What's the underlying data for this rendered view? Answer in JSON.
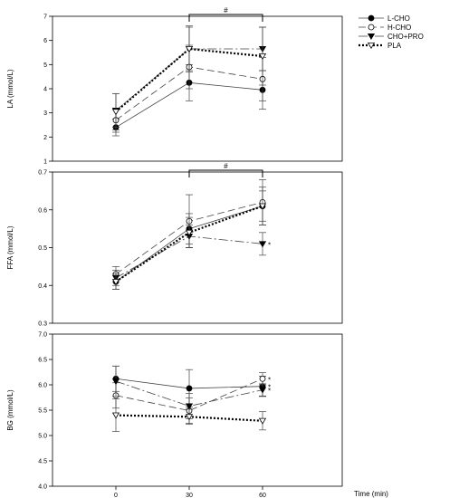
{
  "chart_data": [
    {
      "type": "line",
      "ylabel": "LA (mmol/L)",
      "ylim": [
        1,
        7
      ],
      "yticks": [
        1,
        2,
        3,
        4,
        5,
        6,
        7
      ],
      "ytick_labels": [
        "1",
        "2",
        "3",
        "4",
        "5",
        "6",
        "7"
      ],
      "x": [
        0,
        30,
        60
      ],
      "bracket_label": "#",
      "series": [
        {
          "name": "L-CHO",
          "values": [
            2.4,
            4.25,
            3.95
          ],
          "errors": [
            0.35,
            0.75,
            0.8
          ]
        },
        {
          "name": "H-CHO",
          "values": [
            2.7,
            4.9,
            4.4
          ],
          "errors": [
            0.5,
            0.9,
            0.9
          ]
        },
        {
          "name": "CHO+PRO",
          "values": [
            3.1,
            5.65,
            5.65
          ],
          "errors": [
            0.7,
            0.9,
            0.9
          ]
        },
        {
          "name": "PLA",
          "values": [
            3.05,
            5.65,
            5.35
          ],
          "errors": [
            0.75,
            0.95,
            1.2
          ]
        }
      ],
      "annotations": []
    },
    {
      "type": "line",
      "ylabel": "FFA (mmol/L)",
      "ylim": [
        0.3,
        0.7
      ],
      "yticks": [
        0.3,
        0.4,
        0.5,
        0.6,
        0.7
      ],
      "ytick_labels": [
        "0.3",
        "0.4",
        "0.5",
        "0.6",
        "0.7"
      ],
      "x": [
        0,
        30,
        60
      ],
      "bracket_label": "#",
      "series": [
        {
          "name": "L-CHO",
          "values": [
            0.41,
            0.55,
            0.61
          ],
          "errors": [
            0.02,
            0.04,
            0.05
          ]
        },
        {
          "name": "H-CHO",
          "values": [
            0.43,
            0.57,
            0.62
          ],
          "errors": [
            0.02,
            0.07,
            0.06
          ]
        },
        {
          "name": "CHO+PRO",
          "values": [
            0.42,
            0.53,
            0.51
          ],
          "errors": [
            0.02,
            0.03,
            0.03
          ]
        },
        {
          "name": "PLA",
          "values": [
            0.41,
            0.54,
            0.61
          ],
          "errors": [
            0.02,
            0.04,
            0.04
          ]
        }
      ],
      "annotations": [
        {
          "series": "CHO+PRO",
          "x": 60,
          "text": "*"
        }
      ]
    },
    {
      "type": "line",
      "ylabel": "BG (mmol/L)",
      "ylim": [
        4.0,
        7.0
      ],
      "yticks": [
        4.0,
        4.5,
        5.0,
        5.5,
        6.0,
        6.5,
        7.0
      ],
      "ytick_labels": [
        "4.0",
        "4.5",
        "5.0",
        "5.5",
        "6.0",
        "6.5",
        "7.0"
      ],
      "x": [
        0,
        30,
        60
      ],
      "xticks": [
        "0",
        "30",
        "60"
      ],
      "xlabel": "Time (min)",
      "series": [
        {
          "name": "L-CHO",
          "values": [
            6.12,
            5.93,
            5.97
          ],
          "errors": [
            0.25,
            0.37,
            0.2
          ]
        },
        {
          "name": "H-CHO",
          "values": [
            5.79,
            5.49,
            6.12
          ],
          "errors": [
            0.25,
            0.25,
            0.12
          ]
        },
        {
          "name": "CHO+PRO",
          "values": [
            6.07,
            5.58,
            5.9
          ],
          "errors": [
            0.3,
            0.25,
            0.12
          ]
        },
        {
          "name": "PLA",
          "values": [
            5.4,
            5.37,
            5.29
          ],
          "errors": [
            0.32,
            0.15,
            0.18
          ]
        }
      ],
      "annotations": [
        {
          "series": "H-CHO",
          "x": 60,
          "text": "*"
        },
        {
          "series": "L-CHO",
          "x": 60,
          "text": "*"
        },
        {
          "series": "CHO+PRO",
          "x": 60,
          "text": "*"
        }
      ]
    }
  ],
  "legend": {
    "placement": "top-right",
    "entries": [
      "L-CHO",
      "H-CHO",
      "CHO+PRO",
      "PLA"
    ]
  }
}
